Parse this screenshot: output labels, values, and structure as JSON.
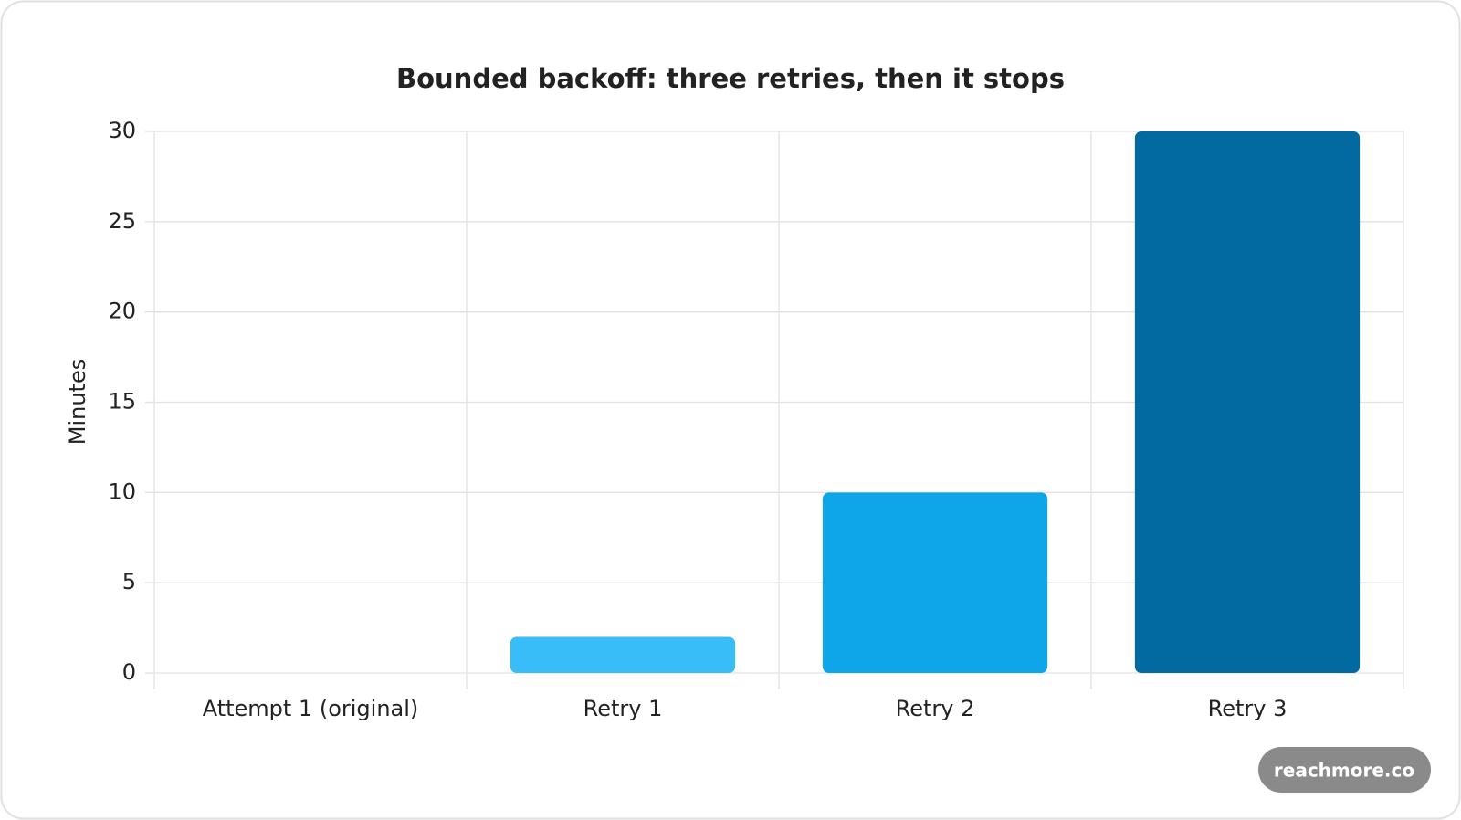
{
  "chart_data": {
    "type": "bar",
    "title": "Bounded backoff: three retries, then it stops",
    "categories": [
      "Attempt 1 (original)",
      "Retry 1",
      "Retry 2",
      "Retry 3"
    ],
    "values": [
      0,
      2,
      10,
      30
    ],
    "colors": [
      "#7dd3fc",
      "#38bdf8",
      "#0ea5e9",
      "#0369a1"
    ],
    "y_label": "Minutes",
    "ylim": [
      0,
      30
    ],
    "yticks": [
      0,
      5,
      10,
      15,
      20,
      25,
      30
    ],
    "grid": true
  },
  "watermark": "reachmore.co"
}
